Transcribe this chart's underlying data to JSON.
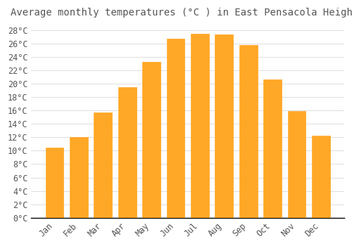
{
  "title": "Average monthly temperatures (°C ) in East Pensacola Heights",
  "months": [
    "Jan",
    "Feb",
    "Mar",
    "Apr",
    "May",
    "Jun",
    "Jul",
    "Aug",
    "Sep",
    "Oct",
    "Nov",
    "Dec"
  ],
  "values": [
    10.5,
    12.0,
    15.7,
    19.5,
    23.3,
    26.7,
    27.5,
    27.3,
    25.8,
    20.6,
    15.9,
    12.2
  ],
  "bar_color": "#FFA726",
  "bar_edge_color": "#FFA726",
  "background_color": "#FFFFFF",
  "grid_color": "#DDDDDD",
  "text_color": "#555555",
  "ylim": [
    0,
    29
  ],
  "ytick_max": 28,
  "ytick_step": 2,
  "title_fontsize": 10,
  "tick_fontsize": 8.5
}
